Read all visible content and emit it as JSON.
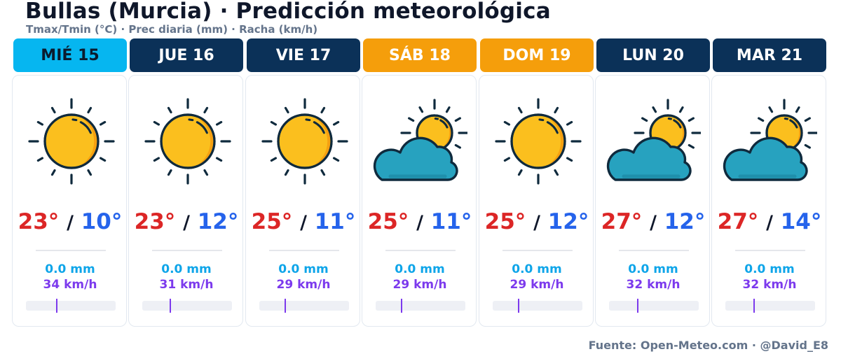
{
  "title": "Bullas (Murcia) · Predicción meteorológica",
  "subtitle": "Tmax/Tmin (°C) · Prec diaria (mm) · Racha (km/h)",
  "footer": "Fuente: Open-Meteo.com · @David_E8",
  "colors": {
    "today": "#06b6f0",
    "weekday": "#0b3158",
    "weekend": "#f59e0b",
    "tmax": "#dc2626",
    "tmin": "#2563eb",
    "precip": "#0ea5e9",
    "gust": "#7c3aed"
  },
  "days": [
    {
      "label": "MIÉ 15",
      "kind": "today",
      "icon": "sun-icon",
      "tmax": "23°",
      "sep": "/",
      "tmin": "10°",
      "precip": "0.0 mm",
      "gust": "34 km/h",
      "gust_value": 34
    },
    {
      "label": "JUE 16",
      "kind": "weekday",
      "icon": "sun-icon",
      "tmax": "23°",
      "sep": "/",
      "tmin": "12°",
      "precip": "0.0 mm",
      "gust": "31 km/h",
      "gust_value": 31
    },
    {
      "label": "VIE 17",
      "kind": "weekday",
      "icon": "sun-icon",
      "tmax": "25°",
      "sep": "/",
      "tmin": "11°",
      "precip": "0.0 mm",
      "gust": "29 km/h",
      "gust_value": 29
    },
    {
      "label": "SÁB 18",
      "kind": "weekend",
      "icon": "partly-cloudy-icon",
      "tmax": "25°",
      "sep": "/",
      "tmin": "11°",
      "precip": "0.0 mm",
      "gust": "29 km/h",
      "gust_value": 29
    },
    {
      "label": "DOM 19",
      "kind": "weekend",
      "icon": "sun-icon",
      "tmax": "25°",
      "sep": "/",
      "tmin": "12°",
      "precip": "0.0 mm",
      "gust": "29 km/h",
      "gust_value": 29
    },
    {
      "label": "LUN 20",
      "kind": "weekday",
      "icon": "partly-cloudy-icon",
      "tmax": "27°",
      "sep": "/",
      "tmin": "12°",
      "precip": "0.0 mm",
      "gust": "32 km/h",
      "gust_value": 32
    },
    {
      "label": "MAR 21",
      "kind": "weekday",
      "icon": "partly-cloudy-icon",
      "tmax": "27°",
      "sep": "/",
      "tmin": "14°",
      "precip": "0.0 mm",
      "gust": "32 km/h",
      "gust_value": 32
    }
  ]
}
